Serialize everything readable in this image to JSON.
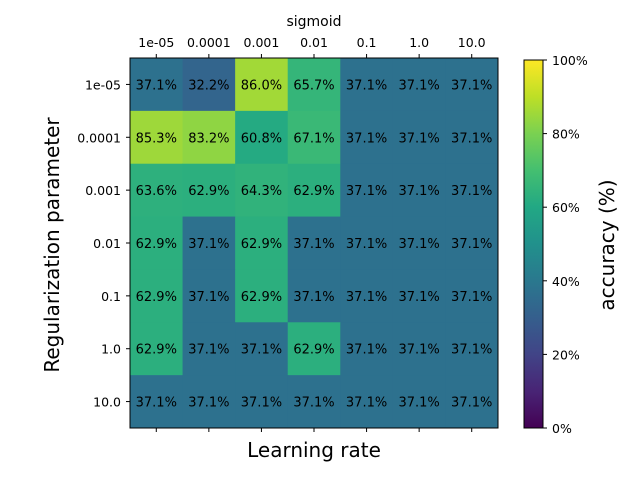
{
  "chart_data": {
    "type": "heatmap",
    "title": "sigmoid",
    "xlabel": "Learning rate",
    "ylabel": "Regularization parameter",
    "x_categories": [
      "1e-05",
      "0.0001",
      "0.001",
      "0.01",
      "0.1",
      "1.0",
      "10.0"
    ],
    "y_categories": [
      "1e-05",
      "0.0001",
      "0.001",
      "0.01",
      "0.1",
      "1.0",
      "10.0"
    ],
    "values": [
      [
        37.1,
        32.2,
        86.0,
        65.7,
        37.1,
        37.1,
        37.1
      ],
      [
        85.3,
        83.2,
        60.8,
        67.1,
        37.1,
        37.1,
        37.1
      ],
      [
        63.6,
        62.9,
        64.3,
        62.9,
        37.1,
        37.1,
        37.1
      ],
      [
        62.9,
        37.1,
        62.9,
        37.1,
        37.1,
        37.1,
        37.1
      ],
      [
        62.9,
        37.1,
        62.9,
        37.1,
        37.1,
        37.1,
        37.1
      ],
      [
        62.9,
        37.1,
        37.1,
        62.9,
        37.1,
        37.1,
        37.1
      ],
      [
        37.1,
        37.1,
        37.1,
        37.1,
        37.1,
        37.1,
        37.1
      ]
    ],
    "value_suffix": "%",
    "colorbar": {
      "label": "accuracy (%)",
      "range": [
        0,
        100
      ],
      "ticks": [
        0,
        20,
        40,
        60,
        80,
        100
      ],
      "tick_labels": [
        "0%",
        "20%",
        "40%",
        "60%",
        "80%",
        "100%"
      ],
      "colormap": "viridis"
    },
    "grid": false
  }
}
